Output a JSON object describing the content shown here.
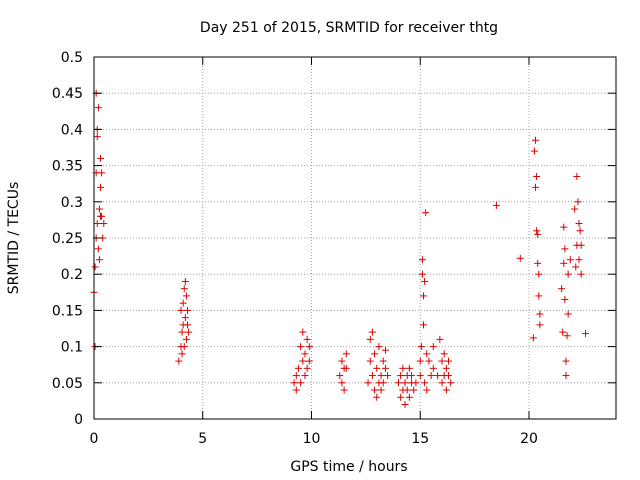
{
  "chart_data": {
    "type": "scatter",
    "title": "Day 251 of 2015, SRMTID for receiver thtg",
    "xlabel": "GPS time / hours",
    "ylabel": "SRMTID / TECUs",
    "xlim": [
      0,
      24
    ],
    "ylim": [
      0,
      0.5
    ],
    "x_ticks": [
      0,
      5,
      10,
      15,
      20
    ],
    "y_ticks": [
      0,
      0.05,
      0.1,
      0.15,
      0.2,
      0.25,
      0.3,
      0.35,
      0.4,
      0.45,
      0.5
    ],
    "grid": true,
    "marker": "+",
    "color": "#dd0000",
    "series": [
      {
        "points": [
          [
            0.0,
            0.175
          ],
          [
            0.05,
            0.1
          ],
          [
            0.05,
            0.21
          ],
          [
            0.1,
            0.25
          ],
          [
            0.1,
            0.34
          ],
          [
            0.1,
            0.45
          ],
          [
            0.15,
            0.39
          ],
          [
            0.15,
            0.4
          ],
          [
            0.15,
            0.27
          ],
          [
            0.2,
            0.43
          ],
          [
            0.2,
            0.235
          ],
          [
            0.25,
            0.29
          ],
          [
            0.25,
            0.22
          ],
          [
            0.3,
            0.32
          ],
          [
            0.3,
            0.36
          ],
          [
            0.3,
            0.28
          ],
          [
            0.35,
            0.28
          ],
          [
            0.35,
            0.34
          ],
          [
            0.4,
            0.25
          ],
          [
            0.45,
            0.27
          ],
          [
            3.9,
            0.08
          ],
          [
            4.0,
            0.1
          ],
          [
            4.0,
            0.15
          ],
          [
            4.05,
            0.09
          ],
          [
            4.05,
            0.12
          ],
          [
            4.1,
            0.16
          ],
          [
            4.1,
            0.13
          ],
          [
            4.15,
            0.18
          ],
          [
            4.15,
            0.1
          ],
          [
            4.2,
            0.19
          ],
          [
            4.2,
            0.14
          ],
          [
            4.25,
            0.17
          ],
          [
            4.25,
            0.11
          ],
          [
            4.3,
            0.15
          ],
          [
            4.3,
            0.13
          ],
          [
            4.35,
            0.12
          ],
          [
            9.2,
            0.05
          ],
          [
            9.3,
            0.06
          ],
          [
            9.3,
            0.04
          ],
          [
            9.4,
            0.07
          ],
          [
            9.5,
            0.1
          ],
          [
            9.5,
            0.05
          ],
          [
            9.6,
            0.08
          ],
          [
            9.6,
            0.12
          ],
          [
            9.7,
            0.09
          ],
          [
            9.7,
            0.06
          ],
          [
            9.8,
            0.11
          ],
          [
            9.8,
            0.07
          ],
          [
            9.9,
            0.1
          ],
          [
            9.9,
            0.08
          ],
          [
            11.3,
            0.06
          ],
          [
            11.4,
            0.08
          ],
          [
            11.4,
            0.05
          ],
          [
            11.5,
            0.07
          ],
          [
            11.5,
            0.04
          ],
          [
            11.6,
            0.09
          ],
          [
            11.6,
            0.07
          ],
          [
            12.6,
            0.05
          ],
          [
            12.7,
            0.08
          ],
          [
            12.7,
            0.11
          ],
          [
            12.8,
            0.06
          ],
          [
            12.8,
            0.12
          ],
          [
            12.9,
            0.04
          ],
          [
            12.9,
            0.09
          ],
          [
            13.0,
            0.07
          ],
          [
            13.0,
            0.03
          ],
          [
            13.1,
            0.05
          ],
          [
            13.1,
            0.1
          ],
          [
            13.2,
            0.06
          ],
          [
            13.2,
            0.04
          ],
          [
            13.3,
            0.08
          ],
          [
            13.3,
            0.05
          ],
          [
            13.4,
            0.095
          ],
          [
            13.4,
            0.07
          ],
          [
            13.5,
            0.06
          ],
          [
            14.0,
            0.05
          ],
          [
            14.1,
            0.03
          ],
          [
            14.1,
            0.06
          ],
          [
            14.2,
            0.04
          ],
          [
            14.2,
            0.07
          ],
          [
            14.3,
            0.02
          ],
          [
            14.3,
            0.05
          ],
          [
            14.4,
            0.06
          ],
          [
            14.4,
            0.04
          ],
          [
            14.5,
            0.07
          ],
          [
            14.5,
            0.03
          ],
          [
            14.6,
            0.05
          ],
          [
            14.6,
            0.06
          ],
          [
            14.7,
            0.04
          ],
          [
            14.8,
            0.05
          ],
          [
            15.0,
            0.06
          ],
          [
            15.0,
            0.08
          ],
          [
            15.05,
            0.1
          ],
          [
            15.1,
            0.22
          ],
          [
            15.1,
            0.2
          ],
          [
            15.15,
            0.17
          ],
          [
            15.15,
            0.13
          ],
          [
            15.2,
            0.19
          ],
          [
            15.2,
            0.05
          ],
          [
            15.25,
            0.285
          ],
          [
            15.3,
            0.09
          ],
          [
            15.3,
            0.04
          ],
          [
            15.4,
            0.08
          ],
          [
            15.5,
            0.06
          ],
          [
            15.6,
            0.1
          ],
          [
            15.6,
            0.07
          ],
          [
            15.8,
            0.06
          ],
          [
            15.9,
            0.11
          ],
          [
            16.0,
            0.08
          ],
          [
            16.0,
            0.05
          ],
          [
            16.1,
            0.09
          ],
          [
            16.1,
            0.06
          ],
          [
            16.2,
            0.07
          ],
          [
            16.2,
            0.04
          ],
          [
            16.3,
            0.06
          ],
          [
            16.3,
            0.08
          ],
          [
            16.4,
            0.05
          ],
          [
            18.5,
            0.295
          ],
          [
            19.6,
            0.222
          ],
          [
            20.2,
            0.112
          ],
          [
            20.25,
            0.37
          ],
          [
            20.3,
            0.385
          ],
          [
            20.3,
            0.32
          ],
          [
            20.35,
            0.335
          ],
          [
            20.35,
            0.26
          ],
          [
            20.4,
            0.255
          ],
          [
            20.4,
            0.215
          ],
          [
            20.45,
            0.2
          ],
          [
            20.45,
            0.17
          ],
          [
            20.5,
            0.145
          ],
          [
            20.5,
            0.13
          ],
          [
            21.5,
            0.18
          ],
          [
            21.55,
            0.12
          ],
          [
            21.6,
            0.265
          ],
          [
            21.6,
            0.215
          ],
          [
            21.65,
            0.235
          ],
          [
            21.65,
            0.165
          ],
          [
            21.7,
            0.08
          ],
          [
            21.7,
            0.06
          ],
          [
            21.75,
            0.115
          ],
          [
            21.8,
            0.145
          ],
          [
            21.8,
            0.2
          ],
          [
            21.9,
            0.22
          ],
          [
            22.1,
            0.29
          ],
          [
            22.15,
            0.21
          ],
          [
            22.2,
            0.24
          ],
          [
            22.2,
            0.335
          ],
          [
            22.25,
            0.3
          ],
          [
            22.3,
            0.27
          ],
          [
            22.3,
            0.22
          ],
          [
            22.35,
            0.26
          ],
          [
            22.4,
            0.24
          ],
          [
            22.4,
            0.2
          ],
          [
            22.6,
            0.118
          ]
        ]
      }
    ]
  }
}
